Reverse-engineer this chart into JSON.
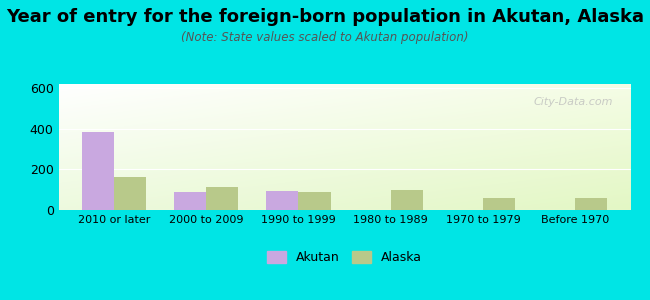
{
  "title": "Year of entry for the foreign-born population in Akutan, Alaska",
  "subtitle": "(Note: State values scaled to Akutan population)",
  "categories": [
    "2010 or later",
    "2000 to 2009",
    "1990 to 1999",
    "1980 to 1989",
    "1970 to 1979",
    "Before 1970"
  ],
  "akutan_values": [
    385,
    90,
    95,
    0,
    0,
    0
  ],
  "alaska_values": [
    160,
    115,
    90,
    100,
    58,
    57
  ],
  "akutan_color": "#c9a8e0",
  "alaska_color": "#b8c98a",
  "ylim": [
    0,
    620
  ],
  "yticks": [
    0,
    200,
    400,
    600
  ],
  "background_color_outer": "#00e5e5",
  "bar_width": 0.35,
  "legend_labels": [
    "Akutan",
    "Alaska"
  ],
  "title_fontsize": 13,
  "subtitle_fontsize": 8.5,
  "watermark": "City-Data.com"
}
